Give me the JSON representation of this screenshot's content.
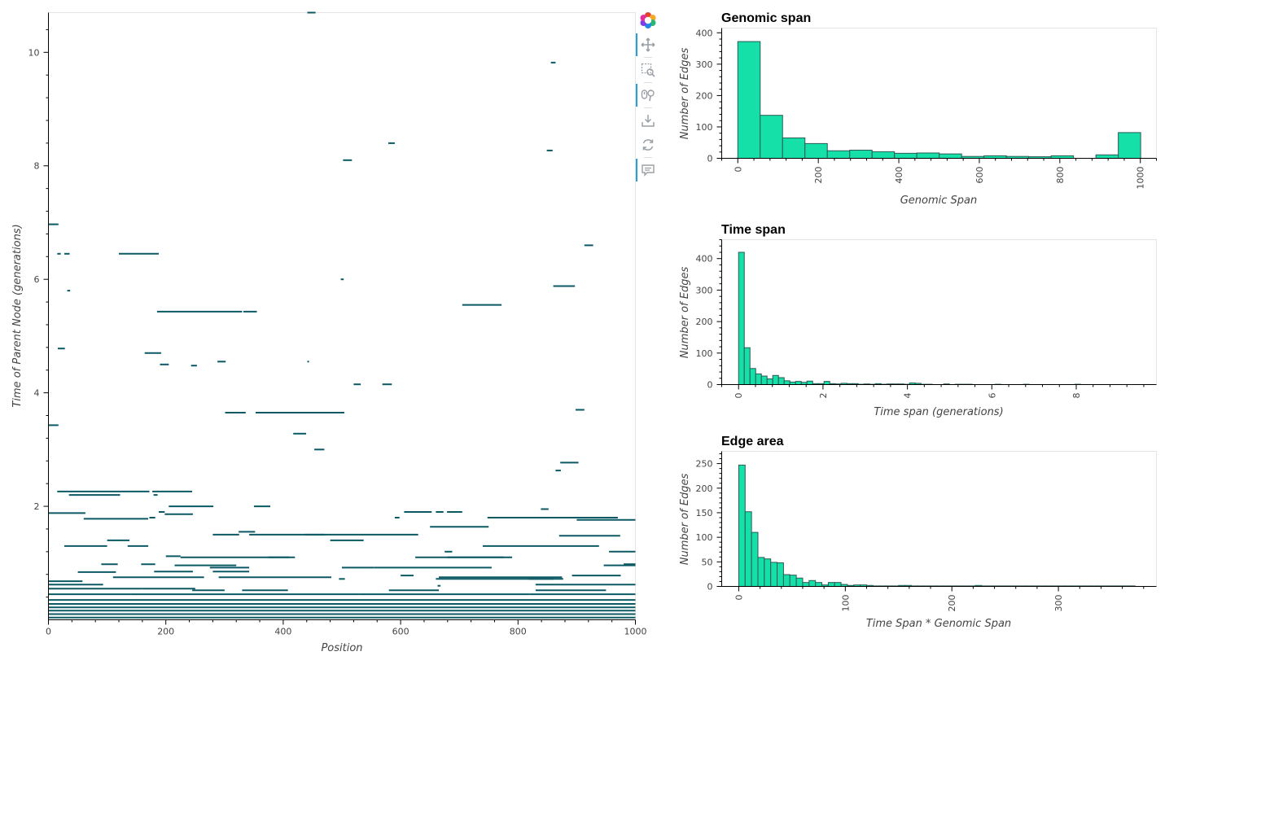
{
  "colors": {
    "edge": "#0b5963",
    "bar_fill": "#14e0a8",
    "bar_stroke": "#2b5a55",
    "tool_active": "#26a0da"
  },
  "toolbar": {
    "tools": [
      {
        "name": "bokeh-logo-icon",
        "active": false
      },
      {
        "name": "pan-icon",
        "active": true
      },
      {
        "name": "box-zoom-icon",
        "active": false
      },
      {
        "name": "wheel-zoom-icon",
        "active": true
      },
      {
        "name": "save-icon",
        "active": false
      },
      {
        "name": "reset-icon",
        "active": false
      },
      {
        "name": "hover-icon",
        "active": true
      }
    ]
  },
  "chart_data": [
    {
      "type": "segments",
      "id": "edges",
      "title": "",
      "xlabel": "Position",
      "ylabel": "Time of Parent Node (generations)",
      "xlim": [
        0,
        1000
      ],
      "ylim": [
        0,
        10.7
      ],
      "xticks": [
        "0",
        "200",
        "400",
        "600",
        "800",
        "1000"
      ],
      "yticks": [
        "2",
        "4",
        "6",
        "8",
        "10"
      ],
      "segments": [
        [
          441,
          455,
          10.7
        ],
        [
          856,
          864,
          9.82
        ],
        [
          579,
          590,
          8.4
        ],
        [
          849,
          859,
          8.27
        ],
        [
          502,
          517,
          8.1
        ],
        [
          0,
          17,
          6.97
        ],
        [
          15,
          21,
          6.45
        ],
        [
          27,
          36,
          6.45
        ],
        [
          120,
          188,
          6.45
        ],
        [
          913,
          928,
          6.6
        ],
        [
          498,
          503,
          6.0
        ],
        [
          32,
          37,
          5.8
        ],
        [
          860,
          897,
          5.88
        ],
        [
          705,
          772,
          5.55
        ],
        [
          185,
          330,
          5.43
        ],
        [
          332,
          355,
          5.43
        ],
        [
          16,
          28,
          4.78
        ],
        [
          164,
          192,
          4.7
        ],
        [
          190,
          205,
          4.5
        ],
        [
          243,
          253,
          4.48
        ],
        [
          288,
          302,
          4.55
        ],
        [
          441,
          444,
          4.55
        ],
        [
          520,
          532,
          4.15
        ],
        [
          569,
          585,
          4.15
        ],
        [
          898,
          913,
          3.7
        ],
        [
          301,
          336,
          3.65
        ],
        [
          353,
          504,
          3.65
        ],
        [
          0,
          17,
          3.43
        ],
        [
          417,
          439,
          3.28
        ],
        [
          453,
          470,
          3.0
        ],
        [
          872,
          903,
          2.77
        ],
        [
          864,
          873,
          2.63
        ],
        [
          15,
          172,
          2.26
        ],
        [
          177,
          245,
          2.26
        ],
        [
          35,
          122,
          2.2
        ],
        [
          179,
          186,
          2.2
        ],
        [
          205,
          281,
          2.0
        ],
        [
          350,
          378,
          2.0
        ],
        [
          188,
          198,
          1.9
        ],
        [
          0,
          63,
          1.88
        ],
        [
          198,
          246,
          1.86
        ],
        [
          606,
          653,
          1.9
        ],
        [
          660,
          673,
          1.9
        ],
        [
          679,
          705,
          1.9
        ],
        [
          839,
          852,
          1.95
        ],
        [
          863,
          970,
          1.8
        ],
        [
          172,
          182,
          1.8
        ],
        [
          60,
          170,
          1.78
        ],
        [
          590,
          598,
          1.8
        ],
        [
          748,
          876,
          1.8
        ],
        [
          900,
          1000,
          1.76
        ],
        [
          930,
          960,
          1.8
        ],
        [
          650,
          750,
          1.64
        ],
        [
          324,
          352,
          1.55
        ],
        [
          280,
          325,
          1.5
        ],
        [
          342,
          630,
          1.5
        ],
        [
          437,
          470,
          1.5
        ],
        [
          870,
          974,
          1.48
        ],
        [
          100,
          138,
          1.4
        ],
        [
          480,
          537,
          1.4
        ],
        [
          27,
          100,
          1.3
        ],
        [
          135,
          170,
          1.3
        ],
        [
          740,
          938,
          1.3
        ],
        [
          675,
          688,
          1.2
        ],
        [
          955,
          1000,
          1.2
        ],
        [
          200,
          225,
          1.12
        ],
        [
          225,
          410,
          1.1
        ],
        [
          375,
          420,
          1.1
        ],
        [
          625,
          775,
          1.1
        ],
        [
          680,
          790,
          1.1
        ],
        [
          90,
          118,
          0.98
        ],
        [
          158,
          182,
          0.98
        ],
        [
          215,
          320,
          0.96
        ],
        [
          275,
          342,
          0.92
        ],
        [
          500,
          555,
          0.92
        ],
        [
          555,
          755,
          0.92
        ],
        [
          946,
          1000,
          0.96
        ],
        [
          980,
          1000,
          0.98
        ],
        [
          50,
          115,
          0.84
        ],
        [
          180,
          246,
          0.85
        ],
        [
          280,
          342,
          0.85
        ],
        [
          600,
          622,
          0.78
        ],
        [
          892,
          975,
          0.78
        ],
        [
          0,
          58,
          0.68
        ],
        [
          110,
          265,
          0.75
        ],
        [
          290,
          482,
          0.75
        ],
        [
          665,
          875,
          0.75
        ],
        [
          495,
          505,
          0.72
        ],
        [
          818,
          877,
          0.72
        ],
        [
          660,
          860,
          0.72
        ],
        [
          830,
          1000,
          0.62
        ],
        [
          0,
          93,
          0.62
        ],
        [
          0,
          160,
          0.55
        ],
        [
          160,
          250,
          0.55
        ],
        [
          245,
          300,
          0.52
        ],
        [
          330,
          408,
          0.52
        ],
        [
          580,
          665,
          0.52
        ],
        [
          830,
          950,
          0.52
        ],
        [
          663,
          668,
          0.6
        ],
        [
          0,
          140,
          0.45
        ],
        [
          140,
          530,
          0.45
        ],
        [
          530,
          820,
          0.45
        ],
        [
          820,
          1000,
          0.45
        ],
        [
          0,
          1000,
          0.35
        ],
        [
          0,
          1000,
          0.28
        ],
        [
          0,
          1000,
          0.22
        ],
        [
          0,
          1000,
          0.16
        ],
        [
          0,
          1000,
          0.1
        ],
        [
          0,
          1000,
          0.04
        ]
      ]
    },
    {
      "type": "bar",
      "id": "genomic",
      "title": "Genomic span",
      "xlabel": "Genomic Span",
      "ylabel": "Number of Edges",
      "xlim": [
        -40,
        1040
      ],
      "ylim": [
        0,
        415
      ],
      "xticks": [
        0,
        200,
        400,
        600,
        800,
        1000
      ],
      "yticks": [
        0,
        100,
        200,
        300,
        400
      ],
      "bin_width": 55.6,
      "values": [
        372,
        137,
        65,
        47,
        24,
        26,
        21,
        16,
        17,
        14,
        6,
        8,
        6,
        5,
        8,
        0,
        11,
        82
      ]
    },
    {
      "type": "bar",
      "id": "time",
      "title": "Time span",
      "xlabel": "Time span (generations)",
      "ylabel": "Number of Edges",
      "xlim": [
        -0.4,
        9.9
      ],
      "ylim": [
        0,
        460
      ],
      "xticks": [
        0,
        2,
        4,
        6,
        8
      ],
      "yticks": [
        0,
        100,
        200,
        300,
        400
      ],
      "bin_width": 0.135,
      "values": [
        420,
        117,
        51,
        34,
        27,
        18,
        29,
        22,
        12,
        8,
        10,
        7,
        11,
        3,
        3,
        10,
        3,
        2,
        4,
        3,
        3,
        1,
        2,
        1,
        3,
        1,
        2,
        2,
        2,
        1,
        5,
        4,
        1,
        1,
        0,
        0,
        2,
        0,
        1,
        1,
        1,
        0,
        0,
        0,
        0,
        1,
        0,
        0,
        0,
        0,
        1,
        0,
        0,
        0,
        0,
        0,
        0,
        0,
        0,
        1,
        0,
        0,
        0,
        0,
        0,
        0,
        0,
        0,
        0
      ]
    },
    {
      "type": "bar",
      "id": "area",
      "title": "Edge area",
      "xlabel": "Time Span * Genomic Span",
      "ylabel": "Number of Edges",
      "xlim": [
        -16,
        392
      ],
      "ylim": [
        0,
        275
      ],
      "xticks": [
        0,
        100,
        200,
        300
      ],
      "yticks": [
        0,
        50,
        100,
        150,
        200,
        250
      ],
      "bin_width": 6.0,
      "values": [
        247,
        152,
        110,
        59,
        56,
        49,
        48,
        24,
        23,
        17,
        8,
        12,
        8,
        3,
        8,
        8,
        4,
        2,
        3,
        3,
        2,
        1,
        1,
        1,
        1,
        2,
        2,
        1,
        1,
        1,
        1,
        1,
        1,
        1,
        1,
        1,
        1,
        2,
        1,
        1,
        1,
        1,
        1,
        1,
        1,
        1,
        1,
        1,
        1,
        1,
        1,
        1,
        1,
        1,
        1,
        1,
        1,
        1,
        1,
        1,
        1,
        1
      ]
    }
  ]
}
